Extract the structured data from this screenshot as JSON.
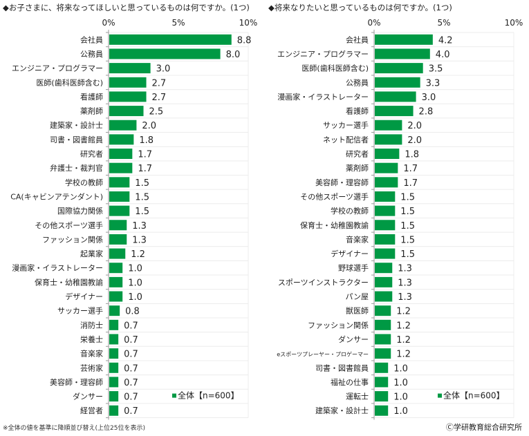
{
  "chart_data": [
    {
      "type": "bar",
      "orientation": "horizontal",
      "title": "◆お子さまに、将来なってほしいと思っているものは何ですか。(1つ)",
      "xlim": [
        0,
        10
      ],
      "xticks": [
        "0%",
        "5%",
        "10%"
      ],
      "legend": "全体【n=600】",
      "legend_position": "bottom-right",
      "bar_color": "#009944",
      "categories": [
        "会社員",
        "公務員",
        "エンジニア・プログラマー",
        "医師(歯科医師含む)",
        "看護師",
        "薬剤師",
        "建築家・設計士",
        "司書・図書館員",
        "研究者",
        "弁護士・裁判官",
        "学校の教師",
        "CA(キャビンアテンダント)",
        "国際協力関係",
        "その他スポーツ選手",
        "ファッション関係",
        "起業家",
        "漫画家・イラストレーター",
        "保育士・幼稚園教諭",
        "デザイナー",
        "サッカー選手",
        "消防士",
        "栄養士",
        "音楽家",
        "芸術家",
        "美容師・理容師",
        "ダンサー",
        "経営者"
      ],
      "values": [
        8.8,
        8.0,
        3.0,
        2.7,
        2.7,
        2.5,
        2.0,
        1.8,
        1.7,
        1.7,
        1.5,
        1.5,
        1.5,
        1.3,
        1.3,
        1.2,
        1.0,
        1.0,
        1.0,
        0.8,
        0.7,
        0.7,
        0.7,
        0.7,
        0.7,
        0.7,
        0.7
      ],
      "labels": [
        "8.8",
        "8.0",
        "3.0",
        "2.7",
        "2.7",
        "2.5",
        "2.0",
        "1.8",
        "1.7",
        "1.7",
        "1.5",
        "1.5",
        "1.5",
        "1.3",
        "1.3",
        "1.2",
        "1.0",
        "1.0",
        "1.0",
        "0.8",
        "0.7",
        "0.7",
        "0.7",
        "0.7",
        "0.7",
        "0.7",
        "0.7"
      ]
    },
    {
      "type": "bar",
      "orientation": "horizontal",
      "title": "◆将来なりたいと思っているものは何ですか。(1つ)",
      "xlim": [
        0,
        10
      ],
      "xticks": [
        "0%",
        "5%",
        "10%"
      ],
      "legend": "全体【n=600】",
      "legend_position": "bottom-right",
      "bar_color": "#009944",
      "categories": [
        "会社員",
        "エンジニア・プログラマー",
        "医師(歯科医師含む)",
        "公務員",
        "漫画家・イラストレーター",
        "看護師",
        "サッカー選手",
        "ネット配信者",
        "研究者",
        "薬剤師",
        "美容師・理容師",
        "その他スポーツ選手",
        "学校の教師",
        "保育士・幼稚園教諭",
        "音楽家",
        "デザイナー",
        "野球選手",
        "スポーツインストラクター",
        "パン屋",
        "獣医師",
        "ファッション関係",
        "ダンサー",
        "eスポーツプレーヤー・プロゲーマー",
        "司書・図書館員",
        "福祉の仕事",
        "運転士",
        "建築家・設計士"
      ],
      "values": [
        4.2,
        4.0,
        3.5,
        3.3,
        3.0,
        2.8,
        2.0,
        2.0,
        1.8,
        1.7,
        1.7,
        1.5,
        1.5,
        1.5,
        1.5,
        1.5,
        1.3,
        1.3,
        1.3,
        1.2,
        1.2,
        1.2,
        1.2,
        1.0,
        1.0,
        1.0,
        1.0
      ],
      "labels": [
        "4.2",
        "4.0",
        "3.5",
        "3.3",
        "3.0",
        "2.8",
        "2.0",
        "2.0",
        "1.8",
        "1.7",
        "1.7",
        "1.5",
        "1.5",
        "1.5",
        "1.5",
        "1.5",
        "1.3",
        "1.3",
        "1.3",
        "1.2",
        "1.2",
        "1.2",
        "1.2",
        "1.0",
        "1.0",
        "1.0",
        "1.0"
      ]
    }
  ],
  "footer": {
    "note": "※全体の値を基準に降順並び替え(上位25位を表示)",
    "copyright": "Ⓒ学研教育総合研究所"
  }
}
